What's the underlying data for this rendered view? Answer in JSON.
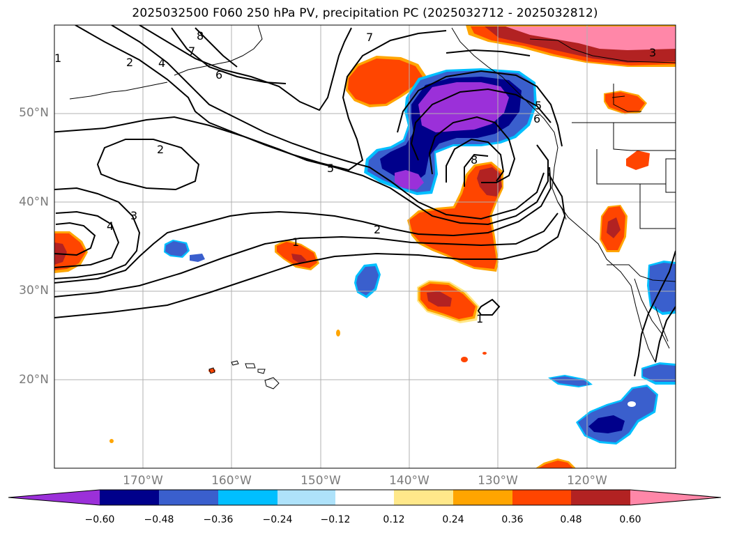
{
  "title": "2025032500 F060 250 hPa PV, precipitation PC (2025032712 - 2025032812)",
  "map": {
    "projection": "PlateCarree",
    "lon_range": [
      -180,
      -110
    ],
    "lat_range": [
      10,
      60
    ],
    "grid": true,
    "lat_labels": [
      "50°N",
      "40°N",
      "30°N",
      "20°N"
    ],
    "lon_labels": [
      "170°W",
      "160°W",
      "150°W",
      "140°W",
      "130°W",
      "120°W"
    ],
    "contour_labels": [
      "8",
      "7",
      "6",
      "2",
      "4",
      "1",
      "2",
      "5",
      "3",
      "4",
      "1",
      "2",
      "8",
      "5",
      "6",
      "7",
      "3",
      "1"
    ]
  },
  "colorbar": {
    "ticks": [
      "−0.60",
      "−0.48",
      "−0.36",
      "−0.24",
      "−0.12",
      "0.12",
      "0.24",
      "0.36",
      "0.48",
      "0.60"
    ],
    "colors": [
      "#9b30d9",
      "#00008b",
      "#3a5fcd",
      "#00bfff",
      "#aee2fa",
      "#ffffff",
      "#ffe88a",
      "#ffa500",
      "#ff4500",
      "#b22222",
      "#ff87a8"
    ],
    "extend": "both"
  }
}
